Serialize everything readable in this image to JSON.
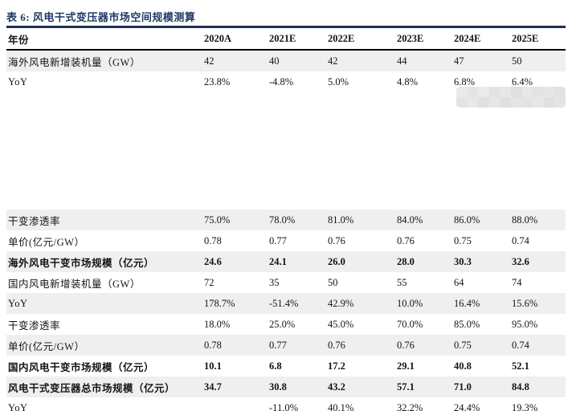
{
  "title": {
    "text": "表 6:  风电干式变压器市场空间规模测算",
    "color": "#1f3a66"
  },
  "table": {
    "columns": [
      "年份",
      "2020A",
      "2021E",
      "2022E",
      "2023E",
      "2024E",
      "2025E"
    ],
    "shaded_color": "#efefef",
    "rows": [
      {
        "label": "海外风电新增装机量（GW）",
        "values": [
          "42",
          "40",
          "42",
          "44",
          "47",
          "50"
        ],
        "bold": false,
        "shaded": true
      },
      {
        "label": "YoY",
        "values": [
          "23.8%",
          "-4.8%",
          "5.0%",
          "4.8%",
          "6.8%",
          "6.4%"
        ],
        "bold": false,
        "shaded": false
      },
      {
        "label": "干变渗透率",
        "values": [
          "75.0%",
          "78.0%",
          "81.0%",
          "84.0%",
          "86.0%",
          "88.0%"
        ],
        "bold": false,
        "shaded": true
      },
      {
        "label": "单价(亿元/GW）",
        "values": [
          "0.78",
          "0.77",
          "0.76",
          "0.76",
          "0.75",
          "0.74"
        ],
        "bold": false,
        "shaded": false
      },
      {
        "label": "海外风电干变市场规模（亿元）",
        "values": [
          "24.6",
          "24.1",
          "26.0",
          "28.0",
          "30.3",
          "32.6"
        ],
        "bold": true,
        "shaded": true
      },
      {
        "label": "国内风电新增装机量（GW）",
        "values": [
          "72",
          "35",
          "50",
          "55",
          "64",
          "74"
        ],
        "bold": false,
        "shaded": false
      },
      {
        "label": "YoY",
        "values": [
          "178.7%",
          "-51.4%",
          "42.9%",
          "10.0%",
          "16.4%",
          "15.6%"
        ],
        "bold": false,
        "shaded": true
      },
      {
        "label": "干变渗透率",
        "values": [
          "18.0%",
          "25.0%",
          "45.0%",
          "70.0%",
          "85.0%",
          "95.0%"
        ],
        "bold": false,
        "shaded": false
      },
      {
        "label": "单价(亿元/GW）",
        "values": [
          "0.78",
          "0.77",
          "0.76",
          "0.76",
          "0.75",
          "0.74"
        ],
        "bold": false,
        "shaded": true
      },
      {
        "label": "国内风电干变市场规模（亿元）",
        "values": [
          "10.1",
          "6.8",
          "17.2",
          "29.1",
          "40.8",
          "52.1"
        ],
        "bold": true,
        "shaded": false
      },
      {
        "label": "风电干式变压器总市场规模（亿元）",
        "values": [
          "34.7",
          "30.8",
          "43.2",
          "57.1",
          "71.0",
          "84.8"
        ],
        "bold": true,
        "shaded": true
      },
      {
        "label": "YoY",
        "values": [
          "",
          "-11.0%",
          "40.1%",
          "32.2%",
          "24.4%",
          "19.3%"
        ],
        "bold": false,
        "shaded": false
      }
    ]
  },
  "watermark": {
    "colors": [
      [
        "#e9e9e9",
        "#e4e4e4",
        "#eaeaea",
        "#e2e2e2",
        "#e7e7e7",
        "#e0e0e0",
        "#e8e8e8",
        "#e3e3e3",
        "#e6e6e6",
        "#e1e1e1"
      ],
      [
        "#e4e4e4",
        "#e8e8e8",
        "#e1e1e1",
        "#e6e6e6",
        "#dfdfdf",
        "#e5e5e5",
        "#e2e2e2",
        "#e7e7e7",
        "#e0e0e0",
        "#e4e4e4"
      ]
    ]
  }
}
